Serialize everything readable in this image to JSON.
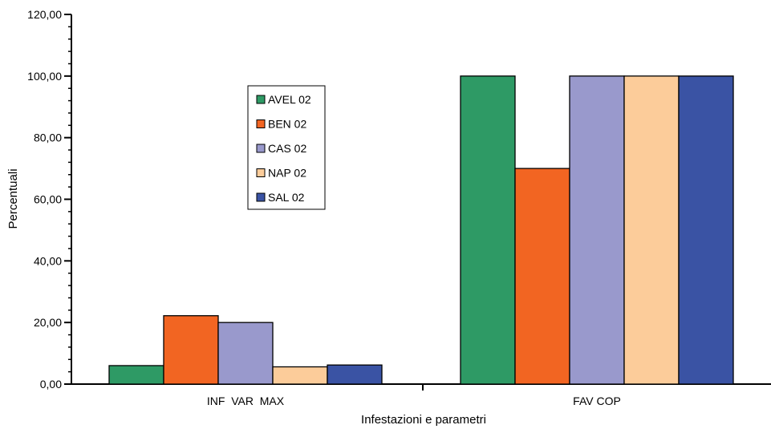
{
  "chart_data": {
    "type": "bar",
    "title": "",
    "xlabel": "Infestazioni e parametri",
    "ylabel": "Percentuali",
    "categories": [
      "INF  VAR  MAX",
      "FAV COP"
    ],
    "ylim": [
      0,
      120
    ],
    "yticks": [
      "0,00",
      "20,00",
      "40,00",
      "60,00",
      "80,00",
      "100,00",
      "120,00"
    ],
    "grid": false,
    "legend_position": "left-center",
    "series": [
      {
        "name": "AVEL 02",
        "color": "#2e9a65",
        "values": [
          6,
          100
        ]
      },
      {
        "name": "BEN 02",
        "color": "#f26522",
        "values": [
          22.2,
          70
        ]
      },
      {
        "name": "CAS 02",
        "color": "#9999cc",
        "values": [
          20,
          100
        ]
      },
      {
        "name": "NAP 02",
        "color": "#fccc9a",
        "values": [
          5.6,
          100
        ]
      },
      {
        "name": "SAL 02",
        "color": "#3a53a4",
        "values": [
          6.2,
          100
        ]
      }
    ]
  }
}
